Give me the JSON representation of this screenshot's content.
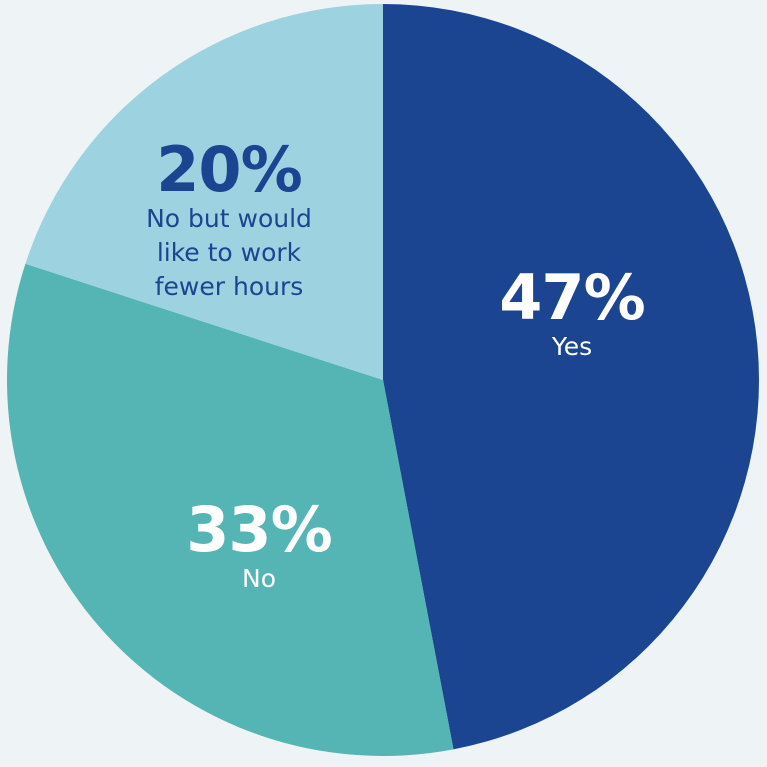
{
  "chart_data": {
    "type": "pie",
    "slices": [
      {
        "label": "Yes",
        "value": 47,
        "value_text": "47%",
        "color": "#1c4591",
        "text_color": "#ffffff"
      },
      {
        "label": "No",
        "value": 33,
        "value_text": "33%",
        "color": "#54b5b4",
        "text_color": "#ffffff"
      },
      {
        "label": "No but would like to work fewer hours",
        "value": 20,
        "value_text": "20%",
        "color": "#9dd3e0",
        "text_color": "#1c4591"
      }
    ],
    "start_position": "top, clockwise",
    "legend": "none (labels inside slices)"
  },
  "labels": {
    "yes": {
      "pct": "47%",
      "desc": "Yes"
    },
    "no": {
      "pct": "33%",
      "desc": "No"
    },
    "fewer": {
      "pct": "20%",
      "desc": "No but would\nlike to work\nfewer hours"
    }
  },
  "colors": {
    "background": "#eef4f5"
  }
}
